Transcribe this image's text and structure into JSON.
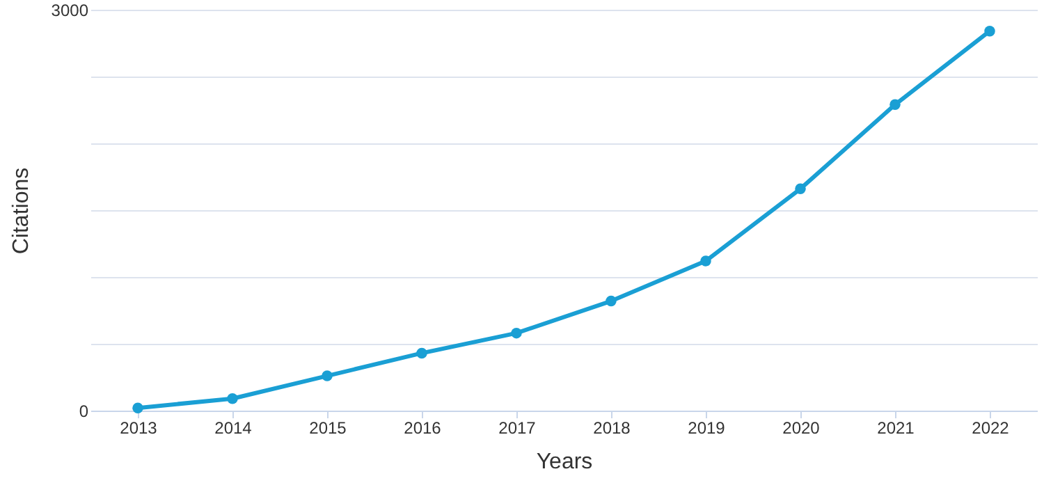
{
  "chart_data": {
    "type": "line",
    "xlabel": "Years",
    "ylabel": "Citations",
    "categories": [
      "2013",
      "2014",
      "2015",
      "2016",
      "2017",
      "2018",
      "2019",
      "2020",
      "2021",
      "2022"
    ],
    "series": [
      {
        "color": "#1a9fd4",
        "values": [
          20,
          90,
          260,
          430,
          580,
          820,
          1120,
          1660,
          2290,
          2840
        ]
      }
    ],
    "ylim": [
      0,
      3000
    ],
    "yticks": [
      0,
      {
        "value": 500,
        "label": null
      },
      {
        "value": 1000,
        "label": null
      },
      {
        "value": 1500,
        "label": null
      },
      {
        "value": 2000,
        "label": null
      },
      {
        "value": 2500,
        "label": null
      },
      3000
    ],
    "grid": "y",
    "marker": "circle",
    "line_style": "solid"
  }
}
